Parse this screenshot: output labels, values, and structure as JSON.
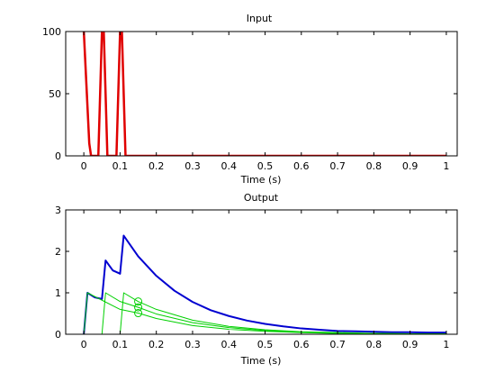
{
  "colors": {
    "input": "#e00000",
    "output_total": "#0000d0",
    "output_impulse": "#00d000",
    "background": "#ffffff"
  },
  "chart_data": [
    {
      "type": "line",
      "title": "Input",
      "xlabel": "Time (s)",
      "ylabel": "",
      "xlim": [
        -0.05,
        1.03
      ],
      "ylim": [
        0,
        100
      ],
      "xticks": [
        0,
        0.1,
        0.2,
        0.3,
        0.4,
        0.5,
        0.6,
        0.7,
        0.8,
        0.9,
        1
      ],
      "xtick_labels": [
        "0",
        "0.1",
        "0.2",
        "0.3",
        "0.4",
        "0.5",
        "0.6",
        "0.7",
        "0.8",
        "0.9",
        "1"
      ],
      "yticks": [
        0,
        50,
        100
      ],
      "ytick_labels": [
        "0",
        "50",
        "100"
      ],
      "grid": false,
      "series": [
        {
          "color": "#e00000",
          "x": [
            0.0,
            0.005,
            0.01,
            0.015,
            0.02,
            0.025,
            0.03,
            0.035,
            0.04,
            0.045,
            0.05,
            0.055,
            0.06,
            0.065,
            0.07,
            0.075,
            0.08,
            0.085,
            0.09,
            0.095,
            0.1,
            0.105,
            0.11,
            0.115,
            1.0
          ],
          "y": [
            100,
            70,
            40,
            10,
            0,
            0,
            0,
            0,
            0,
            50,
            100,
            100,
            50,
            0,
            0,
            0,
            0,
            0,
            0,
            50,
            100,
            100,
            50,
            0,
            0
          ]
        }
      ]
    },
    {
      "type": "line",
      "title": "Output",
      "xlabel": "Time (s)",
      "ylabel": "",
      "xlim": [
        -0.05,
        1.03
      ],
      "ylim": [
        0,
        3
      ],
      "xticks": [
        0,
        0.1,
        0.2,
        0.3,
        0.4,
        0.5,
        0.6,
        0.7,
        0.8,
        0.9,
        1
      ],
      "xtick_labels": [
        "0",
        "0.1",
        "0.2",
        "0.3",
        "0.4",
        "0.5",
        "0.6",
        "0.7",
        "0.8",
        "0.9",
        "1"
      ],
      "yticks": [
        0,
        1,
        2,
        3
      ],
      "ytick_labels": [
        "0",
        "1",
        "2",
        "3"
      ],
      "grid": false,
      "pulse_times": [
        0,
        0.05,
        0.1
      ],
      "peak_time": 0.01,
      "decay_rate": 5.8,
      "series": [
        {
          "color": "#0000d0",
          "x": [
            0.0,
            0.01,
            0.03,
            0.05,
            0.06,
            0.08,
            0.1,
            0.11,
            0.15,
            0.2,
            0.25,
            0.3,
            0.35,
            0.4,
            0.45,
            0.5,
            0.55,
            0.6,
            0.65,
            0.7,
            0.75,
            0.8,
            0.85,
            0.9,
            0.95,
            1.0
          ],
          "y": [
            0.0,
            1.0,
            0.89,
            0.85,
            1.78,
            1.54,
            1.46,
            2.38,
            1.88,
            1.41,
            1.05,
            0.78,
            0.58,
            0.44,
            0.33,
            0.25,
            0.19,
            0.14,
            0.11,
            0.08,
            0.07,
            0.06,
            0.05,
            0.05,
            0.04,
            0.04
          ]
        },
        {
          "color": "#00d000",
          "x": [
            0.0,
            0.01,
            0.1,
            0.15,
            0.2,
            0.3,
            0.4,
            0.5,
            0.6,
            0.7,
            0.8,
            0.9,
            1.0
          ],
          "y": [
            0.0,
            1.0,
            0.6,
            0.51,
            0.38,
            0.21,
            0.12,
            0.07,
            0.04,
            0.02,
            0.01,
            0.01,
            0.0
          ]
        },
        {
          "color": "#00d000",
          "x": [
            0.05,
            0.06,
            0.1,
            0.15,
            0.2,
            0.3,
            0.4,
            0.5,
            0.6,
            0.7,
            0.8,
            0.9,
            1.0
          ],
          "y": [
            0.0,
            1.0,
            0.79,
            0.65,
            0.49,
            0.28,
            0.16,
            0.09,
            0.05,
            0.03,
            0.02,
            0.01,
            0.0
          ]
        },
        {
          "color": "#00d000",
          "x": [
            0.1,
            0.11,
            0.15,
            0.2,
            0.3,
            0.4,
            0.5,
            0.6,
            0.7,
            0.8,
            0.9,
            1.0
          ],
          "y": [
            0.0,
            1.0,
            0.79,
            0.6,
            0.34,
            0.19,
            0.11,
            0.06,
            0.04,
            0.02,
            0.01,
            0.01
          ]
        }
      ],
      "markers": [
        {
          "x": 0.15,
          "y": 0.51,
          "color": "#00d000"
        },
        {
          "x": 0.15,
          "y": 0.65,
          "color": "#00d000"
        },
        {
          "x": 0.15,
          "y": 0.79,
          "color": "#00d000"
        }
      ]
    }
  ]
}
